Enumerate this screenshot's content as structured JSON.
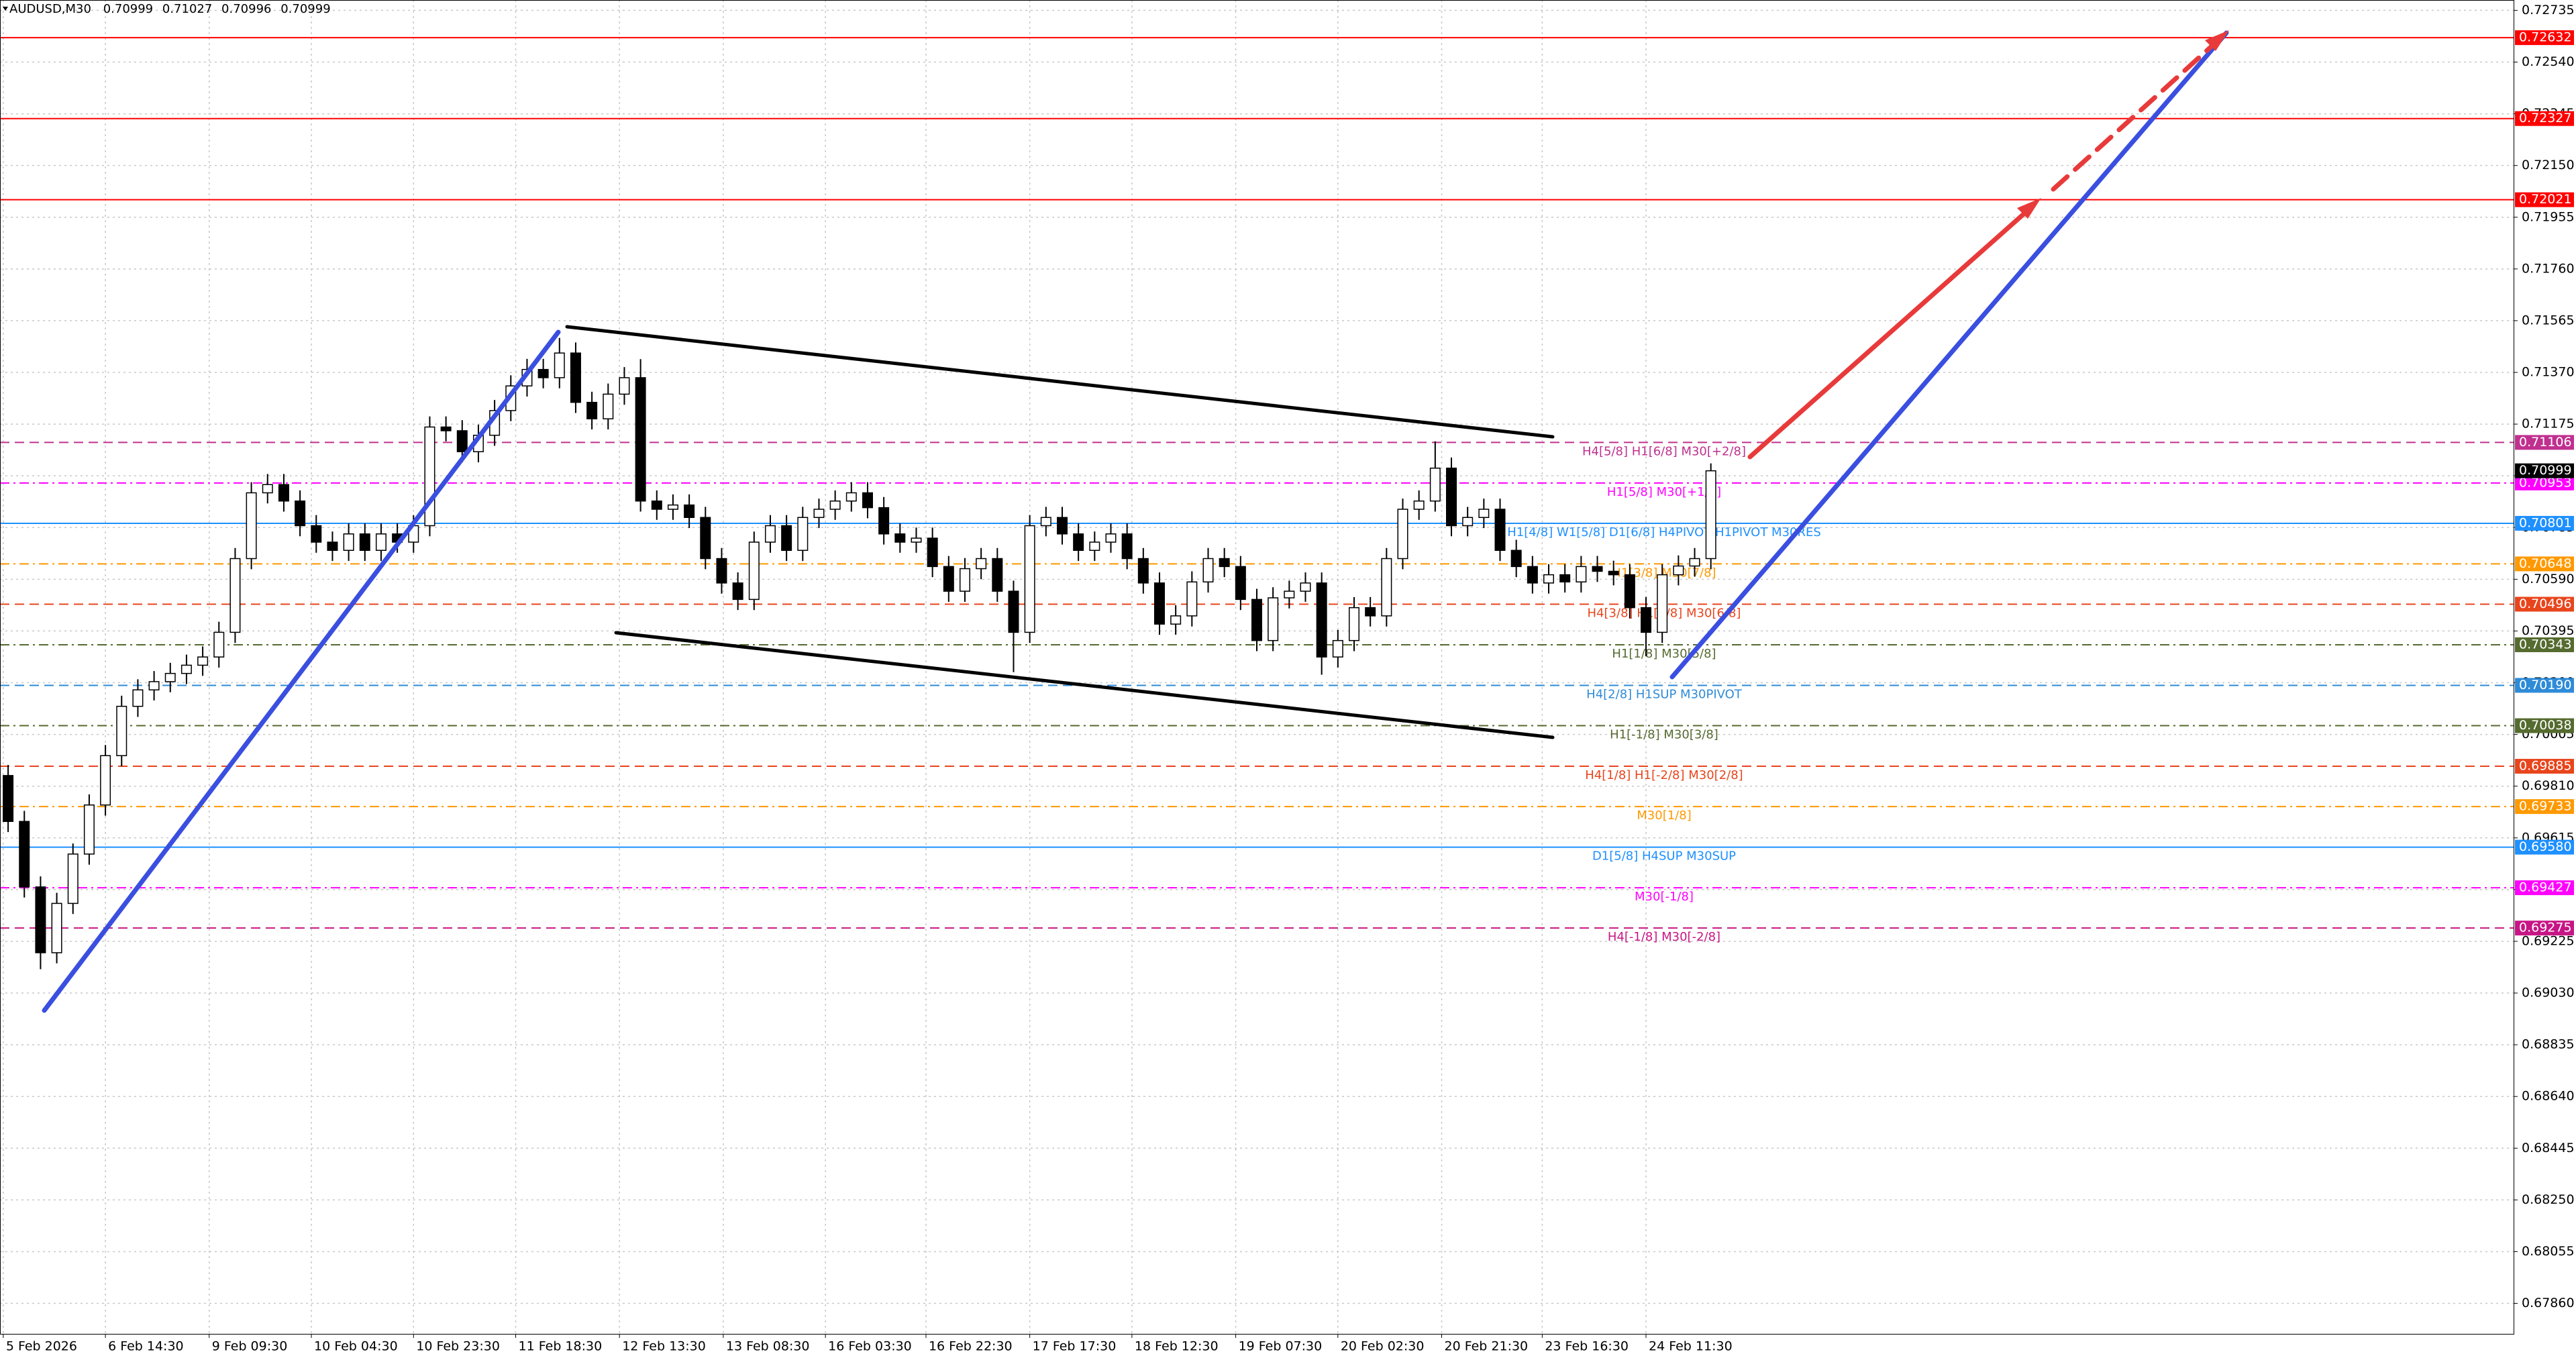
{
  "chart_data": {
    "type": "candlestick",
    "symbol": "AUDUSD,M30",
    "header_ohlc": [
      0.70999,
      0.71027,
      0.70996,
      0.70999
    ],
    "bid": 0.70999,
    "grid": true,
    "xlim": [
      0,
      155
    ],
    "ylim": [
      0.67745,
      0.72774
    ],
    "xticks": [
      {
        "value": 0.2,
        "label": "5 Feb 2026"
      },
      {
        "value": 6.5,
        "label": "6 Feb 14:30"
      },
      {
        "value": 12.9,
        "label": "9 Feb 09:30"
      },
      {
        "value": 19.2,
        "label": "10 Feb 04:30"
      },
      {
        "value": 25.5,
        "label": "10 Feb 23:30"
      },
      {
        "value": 31.8,
        "label": "11 Feb 18:30"
      },
      {
        "value": 38.2,
        "label": "12 Feb 13:30"
      },
      {
        "value": 44.6,
        "label": "13 Feb 08:30"
      },
      {
        "value": 50.9,
        "label": "16 Feb 03:30"
      },
      {
        "value": 57.1,
        "label": "16 Feb 22:30"
      },
      {
        "value": 63.5,
        "label": "17 Feb 17:30"
      },
      {
        "value": 69.8,
        "label": "18 Feb 12:30"
      },
      {
        "value": 76.2,
        "label": "19 Feb 07:30"
      },
      {
        "value": 82.5,
        "label": "20 Feb 02:30"
      },
      {
        "value": 88.9,
        "label": "20 Feb 21:30"
      },
      {
        "value": 95.1,
        "label": "23 Feb 16:30"
      },
      {
        "value": 101.5,
        "label": "24 Feb 11:30"
      }
    ],
    "yticks": [
      0.72735,
      {
        "value": 0.7254,
        "label": "0.72540"
      },
      0.72345,
      {
        "value": 0.7215,
        "label": "0.72150"
      },
      0.71955,
      {
        "value": 0.7176,
        "label": "0.71760"
      },
      0.71565,
      {
        "value": 0.7137,
        "label": "0.71370"
      },
      0.71175,
      {
        "value": 0.7098,
        "label": "0.70980"
      },
      0.70785,
      {
        "value": 0.7059,
        "label": "0.70590"
      },
      0.70395,
      {
        "value": 0.702,
        "label": "0.70200"
      },
      0.70005,
      {
        "value": 0.6981,
        "label": "0.69810"
      },
      0.69615,
      {
        "value": 0.6942,
        "label": "0.69420"
      },
      0.69225,
      {
        "value": 0.6903,
        "label": "0.69030"
      },
      0.68835,
      {
        "value": 0.6864,
        "label": "0.68640"
      },
      0.68445,
      {
        "value": 0.6825,
        "label": "0.68250"
      },
      0.68055,
      {
        "value": 0.6786,
        "label": "0.67860"
      }
    ],
    "levels": [
      {
        "value": 0.72632,
        "color": "#ff0000",
        "dash": "solid"
      },
      {
        "value": 0.72327,
        "color": "#ff0000",
        "dash": "solid"
      },
      {
        "value": 0.72021,
        "color": "#ff0000",
        "dash": "solid"
      },
      {
        "name": "H4[5/8] H1[6/8] M30[+2/8]",
        "value": 0.71106,
        "color": "#c0308f",
        "dash": "dash"
      },
      {
        "name": "H1[5/8] M30[+1/8]",
        "value": 0.70953,
        "color": "#ff00ff",
        "dash": "dashdot"
      },
      {
        "name": "H1[4/8] W1[5/8] D1[6/8] H4PIVOT H1PIVOT M30RES",
        "value": 0.70801,
        "color": "#1e90ff",
        "dash": "solid"
      },
      {
        "name": "H1[3/8] M30[7/8]",
        "value": 0.70648,
        "color": "#ff9900",
        "dash": "dashdot"
      },
      {
        "name": "H4[3/8] H1[2/8] M30[6/8]",
        "value": 0.70496,
        "color": "#e8451c",
        "dash": "dash"
      },
      {
        "name": "H1[1/8] M30[5/8]",
        "value": 0.70343,
        "color": "#556b2f",
        "dash": "dashdot"
      },
      {
        "name": "H4[2/8] H1SUP M30PIVOT",
        "value": 0.7019,
        "value_label": "0.70190",
        "color": "#2e8bd8",
        "dash": "dash"
      },
      {
        "name": "H1[-1/8] M30[3/8]",
        "value": 0.70038,
        "color": "#556b2f",
        "dash": "dashdot"
      },
      {
        "name": "H4[1/8] H1[-2/8] M30[2/8]",
        "value": 0.69885,
        "color": "#e8451c",
        "dash": "dash"
      },
      {
        "name": "M30[1/8]",
        "value": 0.69733,
        "color": "#ff9900",
        "dash": "dashdot"
      },
      {
        "name": "D1[5/8] H4SUP M30SUP",
        "value": 0.6958,
        "value_label": "0.69580",
        "color": "#1e90ff",
        "dash": "solid"
      },
      {
        "name": "M30[-1/8]",
        "value": 0.69427,
        "color": "#ff00ff",
        "dash": "dashdot"
      },
      {
        "name": "H4[-1/8] M30[-2/8]",
        "value": 0.69275,
        "color": "#c71585",
        "dash": "dash"
      }
    ],
    "candles": [
      [
        0.6985,
        0.6989,
        0.69637,
        0.69677
      ],
      [
        0.69677,
        0.69717,
        0.6939,
        0.6943
      ],
      [
        0.6943,
        0.6947,
        0.6912,
        0.69182
      ],
      [
        0.69182,
        0.69408,
        0.69142,
        0.69368
      ],
      [
        0.69368,
        0.69594,
        0.69328,
        0.69554
      ],
      [
        0.69554,
        0.69779,
        0.69514,
        0.69739
      ],
      [
        0.69739,
        0.69965,
        0.69699,
        0.69925
      ],
      [
        0.69925,
        0.70151,
        0.69885,
        0.70111
      ],
      [
        0.70111,
        0.70213,
        0.70071,
        0.70173
      ],
      [
        0.70173,
        0.70244,
        0.70133,
        0.70204
      ],
      [
        0.70204,
        0.70275,
        0.70164,
        0.70235
      ],
      [
        0.70235,
        0.70306,
        0.70195,
        0.70266
      ],
      [
        0.70266,
        0.70337,
        0.70226,
        0.70297
      ],
      [
        0.70297,
        0.7043,
        0.70257,
        0.7039
      ],
      [
        0.7039,
        0.70708,
        0.7035,
        0.70668
      ],
      [
        0.70668,
        0.70956,
        0.70628,
        0.70916
      ],
      [
        0.70916,
        0.70987,
        0.70876,
        0.70947
      ],
      [
        0.70947,
        0.70987,
        0.70845,
        0.70885
      ],
      [
        0.70885,
        0.70925,
        0.70752,
        0.70792
      ],
      [
        0.70792,
        0.70832,
        0.7069,
        0.7073
      ],
      [
        0.7073,
        0.7077,
        0.70659,
        0.70699
      ],
      [
        0.70699,
        0.70801,
        0.70659,
        0.70761
      ],
      [
        0.70761,
        0.70801,
        0.70659,
        0.70699
      ],
      [
        0.70699,
        0.70801,
        0.70659,
        0.70761
      ],
      [
        0.70761,
        0.70801,
        0.7069,
        0.7073
      ],
      [
        0.7073,
        0.70832,
        0.7069,
        0.70792
      ],
      [
        0.70792,
        0.71204,
        0.70752,
        0.71164
      ],
      [
        0.71164,
        0.71204,
        0.7111,
        0.7115
      ],
      [
        0.7115,
        0.7119,
        0.71031,
        0.71071
      ],
      [
        0.71071,
        0.71173,
        0.71031,
        0.71133
      ],
      [
        0.71133,
        0.71266,
        0.71093,
        0.71226
      ],
      [
        0.71226,
        0.71359,
        0.71186,
        0.71319
      ],
      [
        0.71319,
        0.71421,
        0.71279,
        0.71381
      ],
      [
        0.71381,
        0.71421,
        0.7131,
        0.7135
      ],
      [
        0.7135,
        0.715,
        0.7131,
        0.71443
      ],
      [
        0.71443,
        0.71483,
        0.71217,
        0.71257
      ],
      [
        0.71257,
        0.71297,
        0.71155,
        0.71195
      ],
      [
        0.71195,
        0.71328,
        0.71155,
        0.71288
      ],
      [
        0.71288,
        0.7139,
        0.71248,
        0.7135
      ],
      [
        0.7135,
        0.7142,
        0.70845,
        0.70885
      ],
      [
        0.70885,
        0.70925,
        0.70814,
        0.70854
      ],
      [
        0.70854,
        0.7091,
        0.70814,
        0.7087
      ],
      [
        0.7087,
        0.7091,
        0.70783,
        0.70823
      ],
      [
        0.70823,
        0.70863,
        0.70628,
        0.70668
      ],
      [
        0.70668,
        0.70708,
        0.70536,
        0.70576
      ],
      [
        0.70576,
        0.70616,
        0.70474,
        0.70514
      ],
      [
        0.70514,
        0.7077,
        0.70474,
        0.7073
      ],
      [
        0.7073,
        0.70832,
        0.7069,
        0.70792
      ],
      [
        0.70792,
        0.70832,
        0.70659,
        0.70699
      ],
      [
        0.70699,
        0.70863,
        0.70659,
        0.70823
      ],
      [
        0.70823,
        0.70894,
        0.70783,
        0.70854
      ],
      [
        0.70854,
        0.70925,
        0.70814,
        0.70885
      ],
      [
        0.70885,
        0.70956,
        0.70845,
        0.70916
      ],
      [
        0.70916,
        0.70956,
        0.7082,
        0.7086
      ],
      [
        0.7086,
        0.709,
        0.70721,
        0.70761
      ],
      [
        0.70761,
        0.70801,
        0.7069,
        0.7073
      ],
      [
        0.7073,
        0.70785,
        0.7069,
        0.70745
      ],
      [
        0.70745,
        0.70785,
        0.70598,
        0.70638
      ],
      [
        0.70638,
        0.70678,
        0.70505,
        0.70545
      ],
      [
        0.70545,
        0.7067,
        0.70505,
        0.7063
      ],
      [
        0.7063,
        0.70708,
        0.7059,
        0.70668
      ],
      [
        0.70668,
        0.70708,
        0.70505,
        0.70545
      ],
      [
        0.70545,
        0.70585,
        0.7024,
        0.7039
      ],
      [
        0.7039,
        0.70832,
        0.7035,
        0.70792
      ],
      [
        0.70792,
        0.70863,
        0.70752,
        0.70823
      ],
      [
        0.70823,
        0.70863,
        0.70721,
        0.70761
      ],
      [
        0.70761,
        0.70801,
        0.70659,
        0.70699
      ],
      [
        0.70699,
        0.7077,
        0.70659,
        0.7073
      ],
      [
        0.7073,
        0.70801,
        0.7069,
        0.70761
      ],
      [
        0.70761,
        0.70801,
        0.70628,
        0.70668
      ],
      [
        0.70668,
        0.70708,
        0.70536,
        0.70576
      ],
      [
        0.70576,
        0.70616,
        0.70381,
        0.70421
      ],
      [
        0.70421,
        0.70492,
        0.70381,
        0.70452
      ],
      [
        0.70452,
        0.7062,
        0.70412,
        0.7058
      ],
      [
        0.7058,
        0.70708,
        0.7054,
        0.70668
      ],
      [
        0.70668,
        0.70708,
        0.70598,
        0.70638
      ],
      [
        0.70638,
        0.70678,
        0.70474,
        0.70514
      ],
      [
        0.70514,
        0.70554,
        0.70319,
        0.70359
      ],
      [
        0.70359,
        0.7056,
        0.70319,
        0.7052
      ],
      [
        0.7052,
        0.70585,
        0.7048,
        0.70545
      ],
      [
        0.70545,
        0.70616,
        0.70505,
        0.70576
      ],
      [
        0.70576,
        0.70616,
        0.7023,
        0.70297
      ],
      [
        0.70297,
        0.70399,
        0.70257,
        0.70359
      ],
      [
        0.70359,
        0.70523,
        0.70319,
        0.70483
      ],
      [
        0.70483,
        0.70523,
        0.70412,
        0.70452
      ],
      [
        0.70452,
        0.70708,
        0.70412,
        0.70668
      ],
      [
        0.70668,
        0.70894,
        0.70628,
        0.70854
      ],
      [
        0.70854,
        0.70925,
        0.70814,
        0.70885
      ],
      [
        0.70885,
        0.7111,
        0.70845,
        0.71009
      ],
      [
        0.71009,
        0.71049,
        0.70752,
        0.70792
      ],
      [
        0.70792,
        0.70863,
        0.70752,
        0.70823
      ],
      [
        0.70823,
        0.70894,
        0.70783,
        0.70854
      ],
      [
        0.70854,
        0.70894,
        0.70659,
        0.70699
      ],
      [
        0.70699,
        0.70739,
        0.70598,
        0.70638
      ],
      [
        0.70638,
        0.70678,
        0.70536,
        0.70576
      ],
      [
        0.70576,
        0.70647,
        0.70536,
        0.70607
      ],
      [
        0.70607,
        0.70647,
        0.7054,
        0.7058
      ],
      [
        0.7058,
        0.70678,
        0.7054,
        0.70638
      ],
      [
        0.70638,
        0.70678,
        0.7058,
        0.7062
      ],
      [
        0.7062,
        0.7066,
        0.70567,
        0.70607
      ],
      [
        0.70607,
        0.70647,
        0.70443,
        0.70483
      ],
      [
        0.70483,
        0.70523,
        0.703,
        0.7039
      ],
      [
        0.7039,
        0.70647,
        0.7035,
        0.70607
      ],
      [
        0.70607,
        0.7068,
        0.70567,
        0.7064
      ],
      [
        0.7064,
        0.70708,
        0.706,
        0.70668
      ],
      [
        0.70668,
        0.71027,
        0.70628,
        0.70999
      ]
    ]
  }
}
